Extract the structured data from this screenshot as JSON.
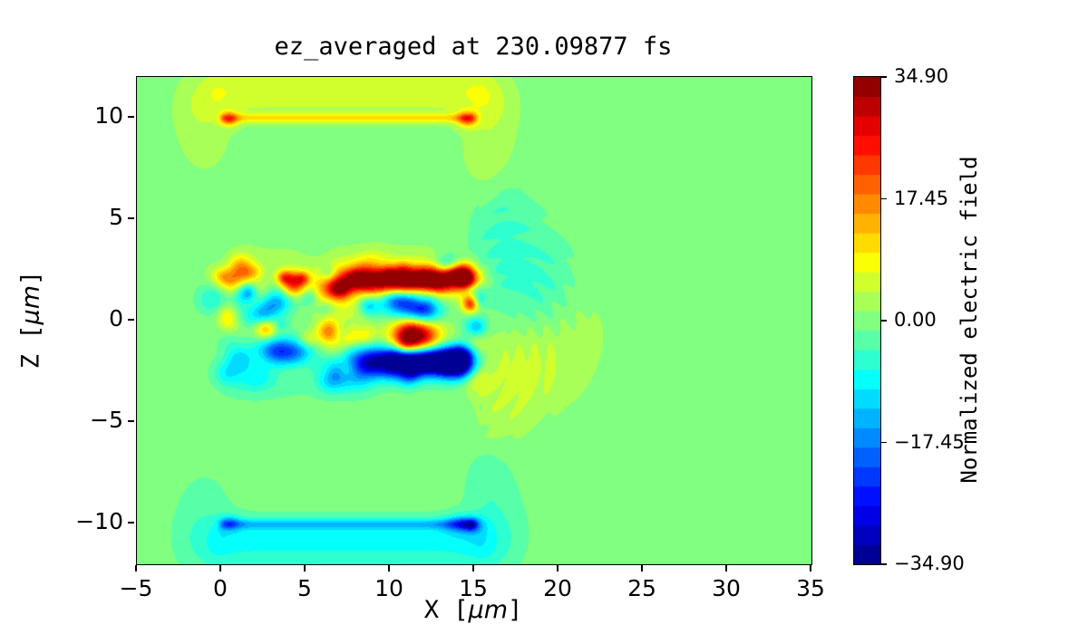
{
  "chart_data": {
    "type": "heatmap",
    "title": "ez_averaged at 230.09877 fs",
    "xlabel": "X [μm]",
    "ylabel": "Z [μm]",
    "xlabel_parts": {
      "pre": "X [",
      "mu": "μm",
      "post": "]"
    },
    "ylabel_parts": {
      "pre": "Z [",
      "mu": "μm",
      "post": "]"
    },
    "x_range": [
      -5,
      35
    ],
    "z_range": [
      -12,
      12
    ],
    "x_ticks": [
      {
        "v": -5,
        "label": "−5"
      },
      {
        "v": 0,
        "label": "0"
      },
      {
        "v": 5,
        "label": "5"
      },
      {
        "v": 10,
        "label": "10"
      },
      {
        "v": 15,
        "label": "15"
      },
      {
        "v": 20,
        "label": "20"
      },
      {
        "v": 25,
        "label": "25"
      },
      {
        "v": 30,
        "label": "30"
      },
      {
        "v": 35,
        "label": "35"
      }
    ],
    "z_ticks": [
      {
        "v": 10,
        "label": "10"
      },
      {
        "v": 5,
        "label": "5"
      },
      {
        "v": 0,
        "label": "0"
      },
      {
        "v": -5,
        "label": "−5"
      },
      {
        "v": -10,
        "label": "−10"
      }
    ],
    "colorbar": {
      "label": "Normalized electric field",
      "vmin": -34.9,
      "vmax": 34.9,
      "levels": 25,
      "colormap": "jet",
      "ticks": [
        {
          "v": 34.9,
          "label": "34.90"
        },
        {
          "v": 17.45,
          "label": "17.45"
        },
        {
          "v": 0.0,
          "label": "0.00"
        },
        {
          "v": -17.45,
          "label": "−17.45"
        },
        {
          "v": -34.9,
          "label": "−34.90"
        }
      ]
    },
    "background_value": 0,
    "field_features": {
      "bars": [
        {
          "z": 10.0,
          "x0": 0.2,
          "x1": 14.8,
          "sz": 0.16,
          "ex": 0.25,
          "amp": 9.5
        },
        {
          "z": 11.3,
          "x0": 0.0,
          "x1": 15.0,
          "sz": 0.85,
          "ex": 0.9,
          "amp": 6.2
        },
        {
          "z": -10.0,
          "x0": 0.2,
          "x1": 14.8,
          "sz": 0.18,
          "ex": 0.25,
          "amp": -9.5
        },
        {
          "z": -11.2,
          "x0": 0.0,
          "x1": 15.2,
          "sz": 0.9,
          "ex": 0.9,
          "amp": -6.0
        },
        {
          "z": -10.45,
          "x0": 0.2,
          "x1": 15.0,
          "sz": 0.55,
          "ex": 0.6,
          "amp": -3.5
        },
        {
          "z": 2.0,
          "x0": 6.0,
          "x1": 14.5,
          "sz": 0.7,
          "ex": 0.8,
          "amp": 7
        },
        {
          "z": -2.0,
          "x0": 8.0,
          "x1": 14.0,
          "sz": 0.7,
          "ex": 0.8,
          "amp": -7
        },
        {
          "z": 0.8,
          "x0": 8.5,
          "x1": 13.0,
          "sz": 0.55,
          "ex": 0.7,
          "amp": -5
        },
        {
          "z": -2.7,
          "x0": 1.0,
          "x1": 8.0,
          "sz": 0.8,
          "ex": 0.9,
          "amp": -3
        },
        {
          "z": 2.8,
          "x0": 2.0,
          "x1": 13.0,
          "sz": 0.7,
          "ex": 0.8,
          "amp": 2.5
        }
      ],
      "blobs": [
        [
          0.45,
          9.95,
          0.35,
          0.25,
          14
        ],
        [
          14.55,
          9.95,
          0.4,
          0.28,
          15
        ],
        [
          -1.0,
          9.2,
          1.2,
          1.5,
          2.6
        ],
        [
          -1.7,
          10.8,
          0.9,
          1.1,
          2.3
        ],
        [
          15.9,
          9.3,
          1.2,
          1.5,
          2.7
        ],
        [
          16.4,
          10.9,
          0.9,
          1.0,
          2.3
        ],
        [
          15.6,
          7.8,
          0.8,
          1.0,
          2.0
        ],
        [
          0.5,
          -9.95,
          0.4,
          0.25,
          -9
        ],
        [
          14.35,
          -10.0,
          0.75,
          0.3,
          -13
        ],
        [
          14.8,
          -10.05,
          0.3,
          0.2,
          -8
        ],
        [
          -1.0,
          -9.4,
          1.2,
          1.5,
          -2.6
        ],
        [
          -1.8,
          -10.9,
          0.9,
          1.1,
          -2.3
        ],
        [
          16.1,
          -9.4,
          1.3,
          1.6,
          -2.9
        ],
        [
          16.7,
          -10.9,
          1.0,
          1.1,
          -2.5
        ],
        [
          15.8,
          -7.6,
          0.8,
          1.0,
          -2.2
        ],
        [
          6.9,
          1.6,
          0.65,
          0.38,
          20
        ],
        [
          7.9,
          2.1,
          0.6,
          0.35,
          19
        ],
        [
          8.9,
          1.8,
          0.75,
          0.42,
          23
        ],
        [
          9.9,
          2.25,
          0.65,
          0.35,
          21
        ],
        [
          10.9,
          1.9,
          0.75,
          0.4,
          25
        ],
        [
          11.9,
          2.15,
          0.65,
          0.35,
          23
        ],
        [
          12.9,
          1.9,
          0.7,
          0.38,
          26
        ],
        [
          13.7,
          2.25,
          0.55,
          0.3,
          21
        ],
        [
          14.45,
          2.0,
          0.45,
          0.3,
          23
        ],
        [
          4.25,
          1.8,
          0.5,
          0.42,
          27
        ],
        [
          3.7,
          2.15,
          0.35,
          0.25,
          16
        ],
        [
          4.8,
          2.1,
          0.3,
          0.22,
          14
        ],
        [
          0.55,
          2.0,
          0.5,
          0.4,
          13
        ],
        [
          1.6,
          2.35,
          0.45,
          0.3,
          9
        ],
        [
          2.6,
          -0.4,
          0.45,
          0.35,
          15
        ],
        [
          6.35,
          -0.5,
          0.5,
          0.4,
          17
        ],
        [
          5.1,
          -0.95,
          0.4,
          0.3,
          9
        ],
        [
          8.3,
          -0.65,
          0.55,
          0.4,
          11
        ],
        [
          0.3,
          0.3,
          0.4,
          0.35,
          8
        ],
        [
          3.25,
          0.9,
          0.6,
          0.45,
          -13
        ],
        [
          2.5,
          0.35,
          0.5,
          0.4,
          -11
        ],
        [
          6.25,
          0.6,
          0.4,
          0.35,
          -9
        ],
        [
          5.2,
          1.15,
          0.35,
          0.3,
          -7
        ],
        [
          1.2,
          1.2,
          0.4,
          0.35,
          -7
        ],
        [
          11.2,
          0.75,
          0.85,
          0.55,
          -20
        ],
        [
          12.3,
          0.4,
          0.65,
          0.4,
          -12
        ],
        [
          10.3,
          1.1,
          0.5,
          0.35,
          -10
        ],
        [
          11.35,
          -0.8,
          0.8,
          0.58,
          33
        ],
        [
          11.35,
          -0.8,
          1.35,
          0.95,
          9
        ],
        [
          9.0,
          -1.95,
          1.1,
          0.5,
          -16
        ],
        [
          10.5,
          -2.15,
          0.95,
          0.5,
          -20
        ],
        [
          11.8,
          -1.85,
          1.1,
          0.5,
          -29
        ],
        [
          13.1,
          -2.05,
          0.95,
          0.45,
          -25
        ],
        [
          14.15,
          -1.75,
          0.65,
          0.4,
          -17
        ],
        [
          4.15,
          -1.6,
          0.75,
          0.5,
          -19
        ],
        [
          3.0,
          -1.45,
          0.65,
          0.4,
          -11
        ],
        [
          1.1,
          -1.85,
          0.55,
          0.4,
          -9
        ],
        [
          5.6,
          -2.25,
          0.75,
          0.4,
          -8
        ],
        [
          14.35,
          2.45,
          0.45,
          0.35,
          17
        ],
        [
          14.75,
          0.85,
          0.33,
          0.3,
          23
        ],
        [
          14.05,
          -2.35,
          0.75,
          0.4,
          -15
        ],
        [
          15.3,
          1.6,
          0.4,
          0.5,
          -6
        ],
        [
          17.0,
          2.4,
          1.7,
          1.8,
          -3.2
        ],
        [
          18.6,
          1.3,
          1.7,
          1.9,
          -2.6
        ],
        [
          16.6,
          4.3,
          1.1,
          1.2,
          -2.2
        ],
        [
          19.9,
          2.0,
          1.4,
          1.7,
          -1.8
        ],
        [
          16.8,
          5.6,
          1.4,
          1.1,
          -1.7
        ],
        [
          17.0,
          -1.7,
          1.7,
          1.6,
          3.1
        ],
        [
          18.5,
          -2.5,
          1.7,
          1.5,
          2.5
        ],
        [
          16.9,
          -3.9,
          1.2,
          1.0,
          2.1
        ],
        [
          19.8,
          -1.5,
          1.5,
          1.7,
          1.7
        ],
        [
          21.4,
          0.3,
          1.5,
          2.2,
          1.9
        ],
        [
          16.4,
          -5.3,
          1.0,
          0.9,
          1.6
        ],
        [
          2.0,
          -2.8,
          0.8,
          0.5,
          -6
        ],
        [
          7.0,
          -3.0,
          1.0,
          0.4,
          -5
        ]
      ],
      "ripples": [
        {
          "cx": 15.4,
          "cz": 0.2,
          "k": 5.5,
          "m": 13,
          "ph": 0.8,
          "amp": 1.1,
          "r0": 1.2,
          "r1": 6.8,
          "xmin": 15.4
        }
      ],
      "speckle": {
        "seed": 12345,
        "count": 85,
        "x0": -0.6,
        "x1": 15.3,
        "z0": -3.0,
        "z1": 3.0,
        "smin": 0.28,
        "smax": 0.7,
        "amin": -8,
        "amax": 8
      }
    }
  }
}
